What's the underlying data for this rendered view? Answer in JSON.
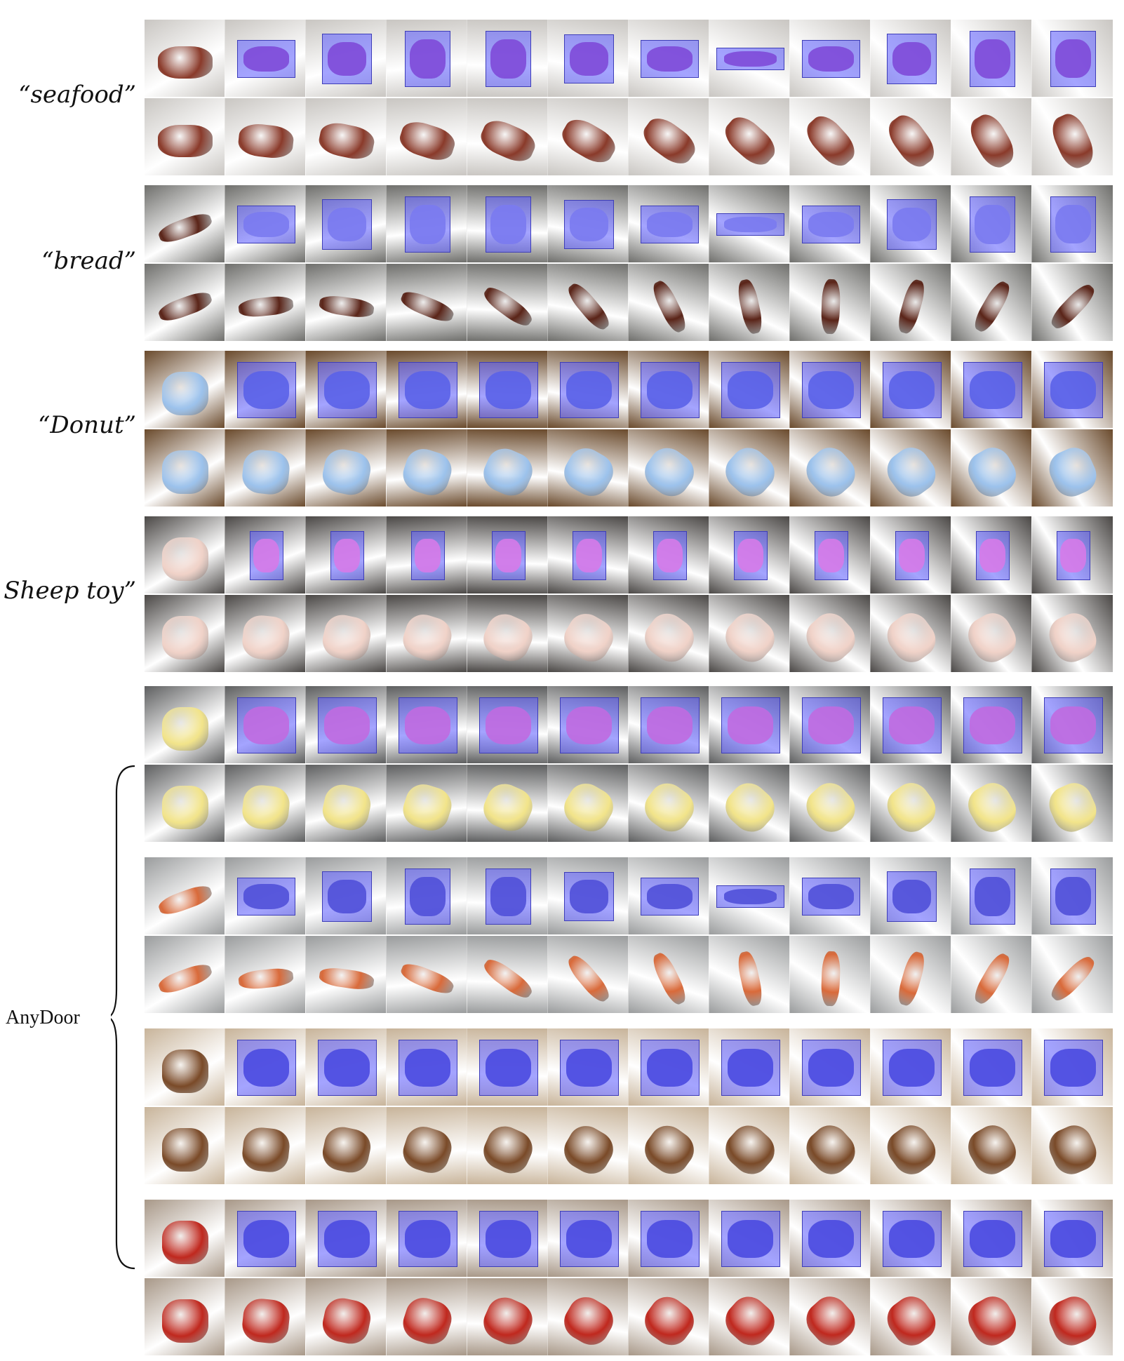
{
  "labels": {
    "seafood": "“seafood”",
    "bread": "“bread”",
    "donut": "“Donut”",
    "sheep": "Sheep toy”",
    "anydoor": "AnyDoor"
  },
  "palette": {
    "seafood": {
      "bg": "#c9c6c2",
      "obj": "#8a3a2a",
      "tint": "#7e4ad8"
    },
    "bread": {
      "bg": "#6f6f6c",
      "obj": "#5a2418",
      "tint": "#7a7af0"
    },
    "donut": {
      "bg": "#6a4a2c",
      "obj": "#9cc2ec",
      "tint": "#5a62e8"
    },
    "sheep": {
      "bg": "#4b4846",
      "obj": "#f0d2c8",
      "tint": "#d67ae8"
    },
    "duck": {
      "bg": "#5e5f60",
      "obj": "#f2e48a",
      "tint": "#c06ae0"
    },
    "hotdog": {
      "bg": "#9a9c9d",
      "obj": "#d96a3a",
      "tint": "#5050d8"
    },
    "bear": {
      "bg": "#c8b49a",
      "obj": "#7a4a28",
      "tint": "#4a4ae0"
    },
    "crab": {
      "bg": "#a89888",
      "obj": "#c0281e",
      "tint": "#4a4ae0"
    }
  }
}
